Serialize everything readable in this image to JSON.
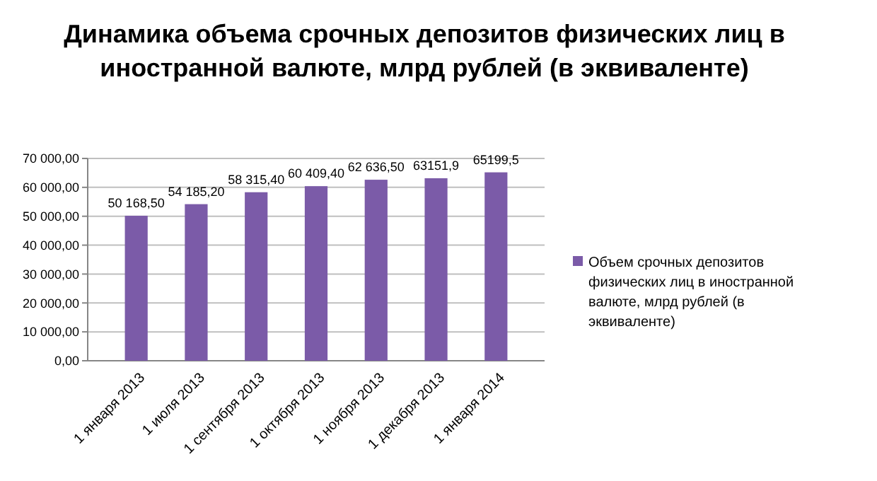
{
  "chart_data": {
    "type": "bar",
    "title": "Динамика объема  срочных депозитов физических лиц в иностранной валюте, млрд рублей (в эквиваленте)",
    "categories": [
      "1 января 2013",
      "1 июля 2013",
      "1 сентября 2013",
      "1 октября 2013",
      "1 ноября 2013",
      "1 декабря 2013",
      "1 января 2014"
    ],
    "series": [
      {
        "name": "Объем  срочных депозитов физических лиц в иностранной валюте, млрд рублей (в эквиваленте)",
        "color": "#7b5ba8",
        "values": [
          50168.5,
          54185.2,
          58315.4,
          60409.4,
          62636.5,
          63151.9,
          65199.5
        ],
        "value_labels": [
          "50 168,50",
          "54 185,20",
          "58 315,40",
          "60 409,40",
          "62 636,50",
          "63151,9",
          "65199,5"
        ]
      }
    ],
    "ylim": [
      0,
      70000
    ],
    "yticks": [
      {
        "value": 0,
        "label": "0,00"
      },
      {
        "value": 10000,
        "label": "10 000,00"
      },
      {
        "value": 20000,
        "label": "20 000,00"
      },
      {
        "value": 30000,
        "label": "30 000,00"
      },
      {
        "value": 40000,
        "label": "40 000,00"
      },
      {
        "value": 50000,
        "label": "50 000,00"
      },
      {
        "value": 60000,
        "label": "60 000,00"
      },
      {
        "value": 70000,
        "label": "70 000,00"
      }
    ],
    "grid": "y",
    "legend": "right"
  }
}
